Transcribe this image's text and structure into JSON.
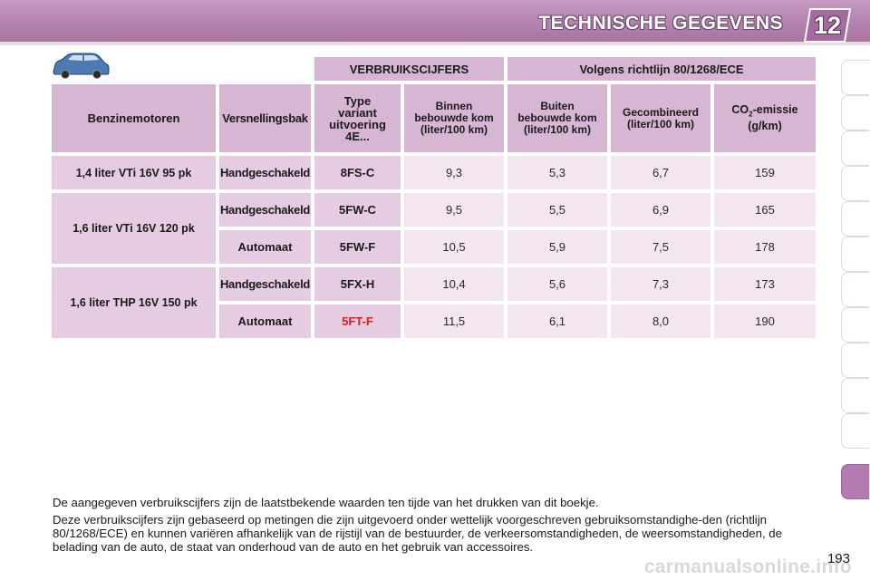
{
  "header": {
    "chapter_title": "TECHNISCHE GEGEVENS",
    "chapter_number": "12",
    "accent_color": "#b483b0"
  },
  "table": {
    "title_left": "VERBRUIKSCIJFERS",
    "title_right": "Volgens richtlijn 80/1268/ECE",
    "headers": {
      "engines": "Benzinemotoren",
      "gearbox": "Versnellingsbak",
      "type_line1": "Type",
      "type_line2": "variant",
      "type_line3": "uitvoering",
      "type_line4": "4E...",
      "urban_line1": "Binnen",
      "urban_line2": "bebouwde kom",
      "urban_line3": "(liter/100 km)",
      "extra_line1": "Buiten",
      "extra_line2": "bebouwde kom",
      "extra_line3": "(liter/100 km)",
      "combined_line1": "Gecombineerd",
      "combined_line2": "(liter/100 km)",
      "co2_prefix": "CO",
      "co2_sub": "2",
      "co2_suffix": "-emissie",
      "co2_unit": "(g/km)"
    },
    "rows": [
      {
        "engine": "1,4 liter VTi 16V 95 pk",
        "gearbox": "Handgeschakeld",
        "type": "8FS-C",
        "urban": "9,3",
        "extra": "5,3",
        "combined": "6,7",
        "co2": "159"
      },
      {
        "engine": "1,6 liter VTi 16V 120 pk",
        "gearbox": "Handgeschakeld",
        "type": "5FW-C",
        "urban": "9,5",
        "extra": "5,5",
        "combined": "6,9",
        "co2": "165"
      },
      {
        "engine": "",
        "gearbox": "Automaat",
        "type": "5FW-F",
        "urban": "10,5",
        "extra": "5,9",
        "combined": "7,5",
        "co2": "178"
      },
      {
        "engine": "1,6 liter THP 16V 150 pk",
        "gearbox": "Handgeschakeld",
        "type": "5FX-H",
        "urban": "10,4",
        "extra": "5,6",
        "combined": "7,3",
        "co2": "173"
      },
      {
        "engine": "",
        "gearbox": "Automaat",
        "type": "5FT-F",
        "urban": "11,5",
        "extra": "6,1",
        "combined": "8,0",
        "co2": "190"
      }
    ]
  },
  "notes": {
    "p1": "De aangegeven verbruikscijfers zijn de laatstbekende waarden ten tijde van het drukken van dit boekje.",
    "p2": "Deze verbruikscijfers zijn gebaseerd op metingen die zijn uitgevoerd onder wettelijk voorgeschreven gebruiksomstandighe-den (richtlijn 80/1268/ECE) en kunnen variëren afhankelijk van de rijstijl van de bestuurder, de verkeersomstandigheden, de weersomstandigheden, de belading van de auto, de staat van onderhoud van de auto en het gebruik van accessoires."
  },
  "footer": {
    "page_number": "193",
    "watermark": "carmanualsonline.info"
  }
}
